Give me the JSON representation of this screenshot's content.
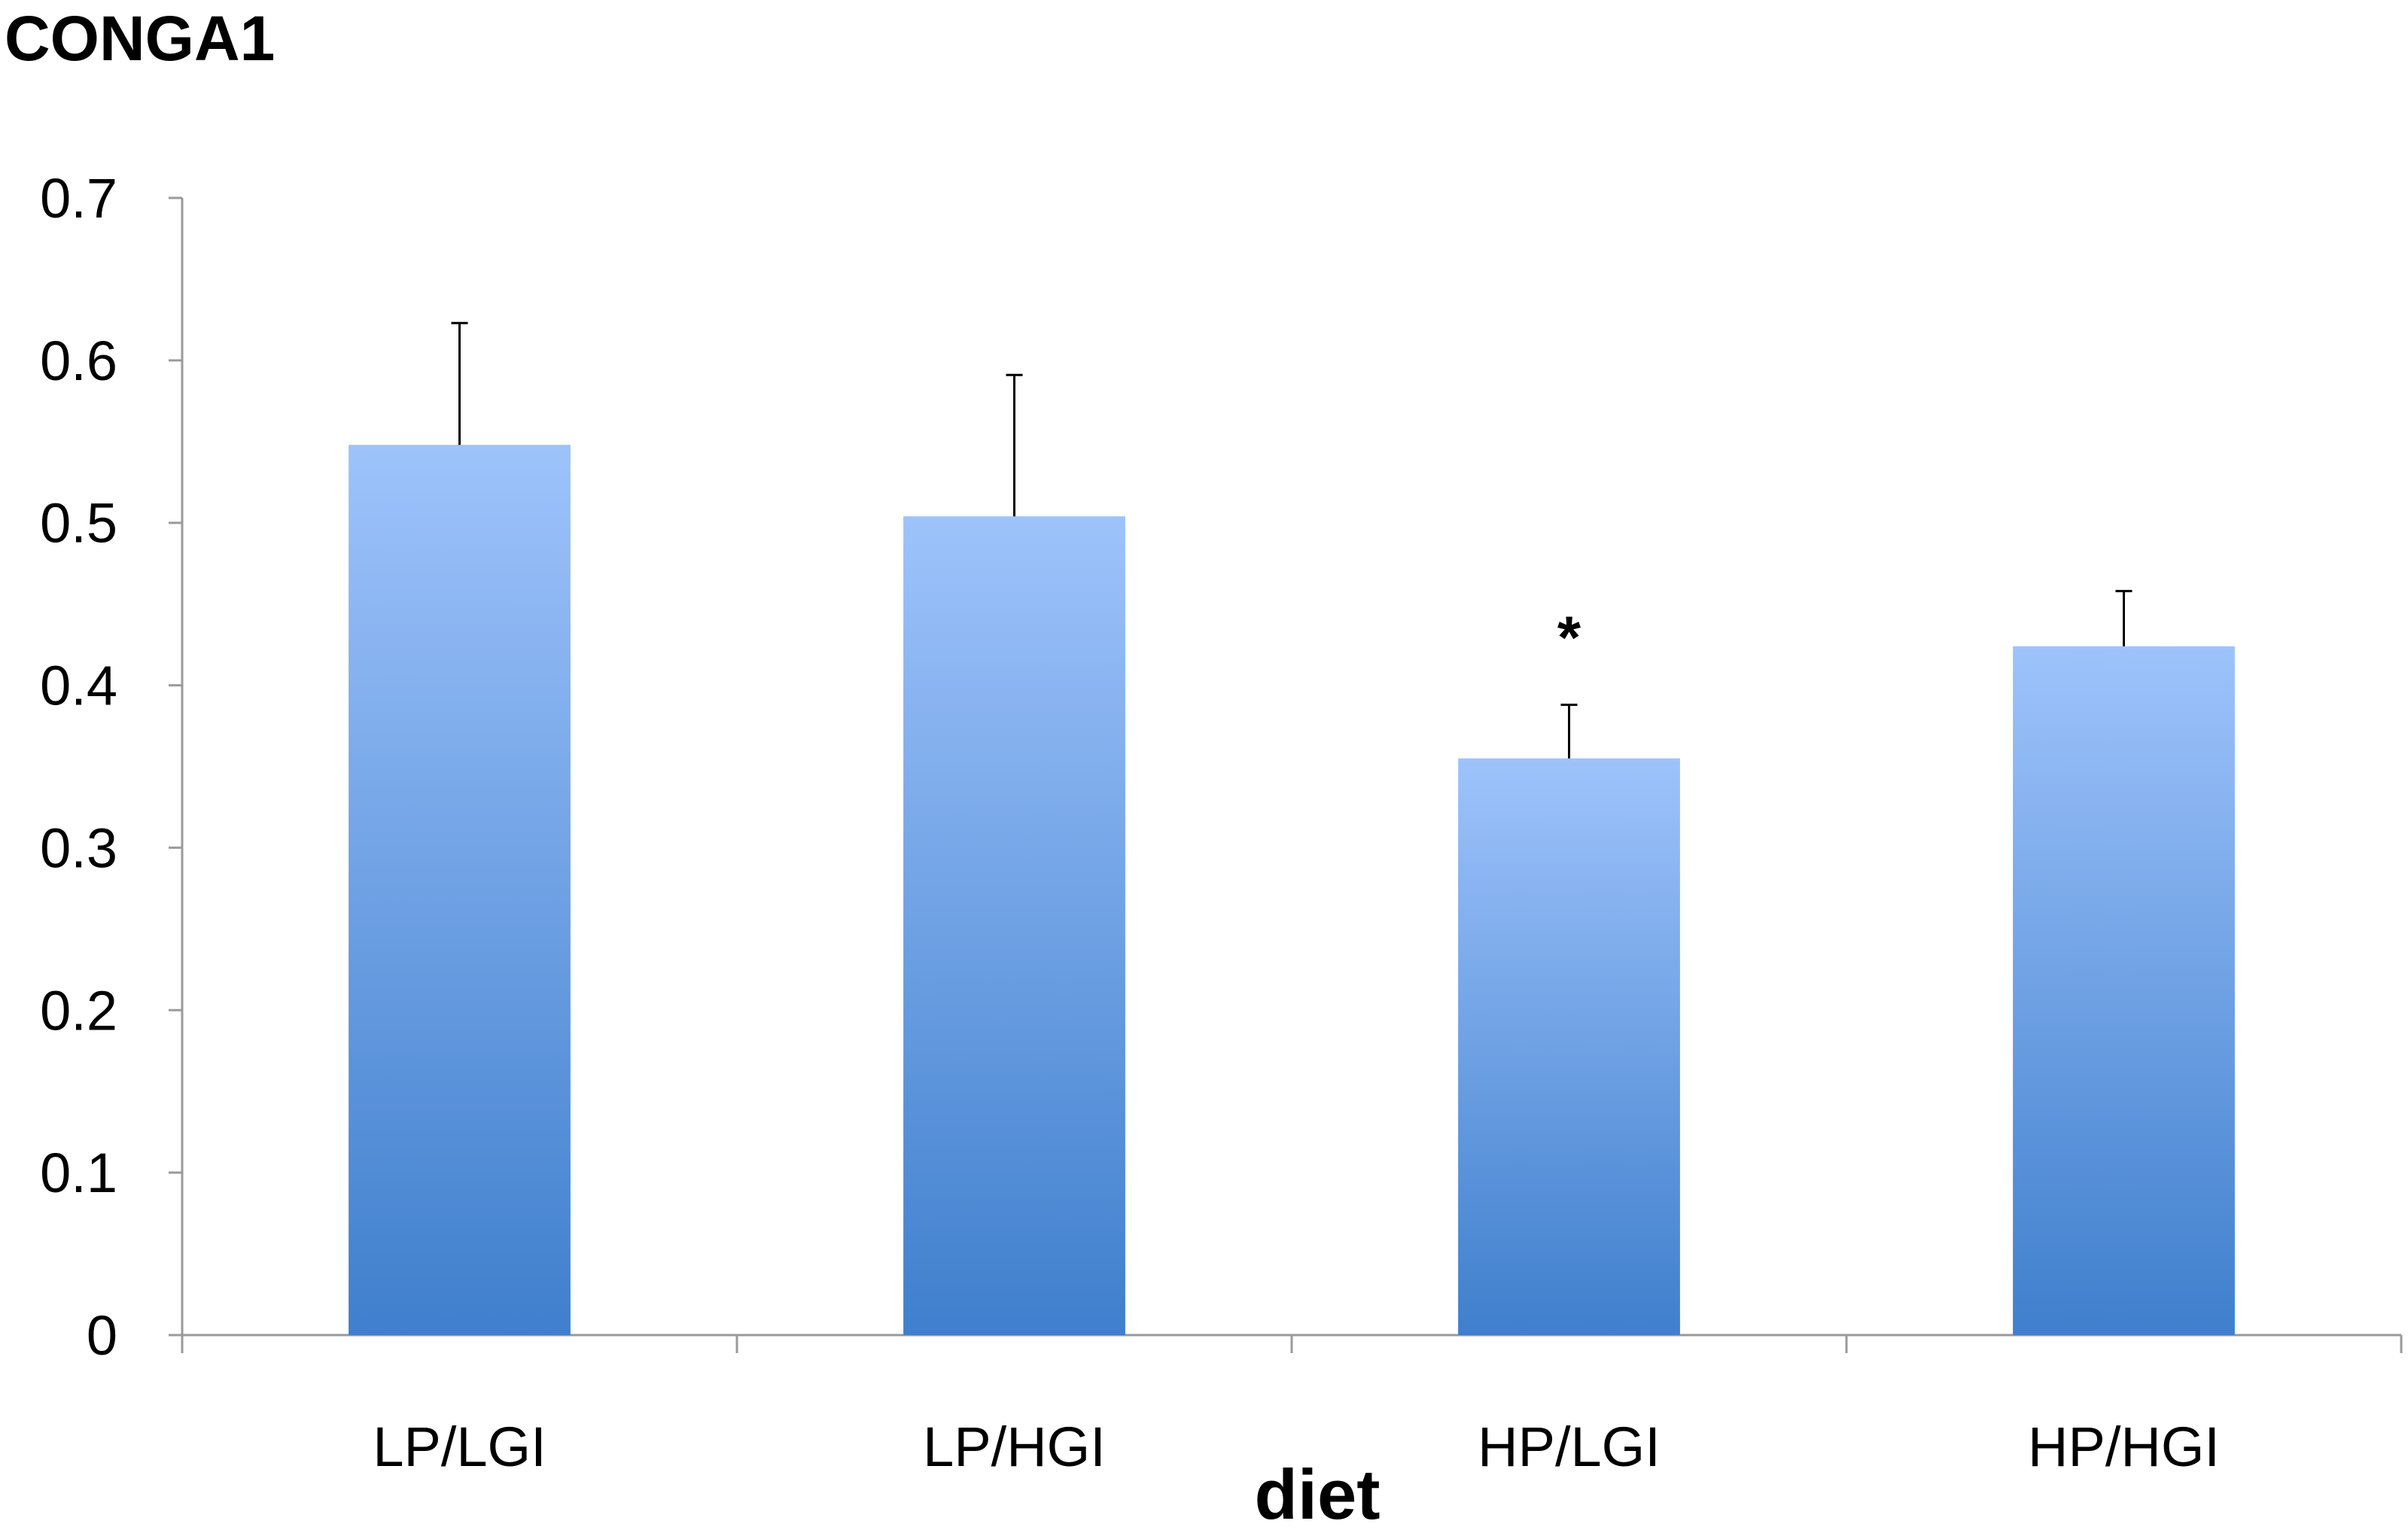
{
  "chart_data": {
    "type": "bar",
    "title": "CONGA1",
    "xlabel": "diet",
    "ylabel": "",
    "categories": [
      "LP/LGI",
      "LP/HGI",
      "HP/LGI",
      "HP/HGI"
    ],
    "values": [
      0.548,
      0.504,
      0.355,
      0.424
    ],
    "error_bars": [
      0.075,
      0.087,
      0.033,
      0.034
    ],
    "ylim": [
      0,
      0.7
    ],
    "yticks": [
      "0",
      "0.1",
      "0.2",
      "0.3",
      "0.4",
      "0.5",
      "0.6",
      "0.7"
    ],
    "ytick_values": [
      0,
      0.1,
      0.2,
      0.3,
      0.4,
      0.5,
      0.6,
      0.7
    ],
    "annotations": [
      {
        "category": "HP/LGI",
        "text": "*"
      }
    ],
    "grid": false,
    "legend": "none",
    "colors": {
      "bar_top": "#9ec3fb",
      "bar_bottom": "#3f7fcd",
      "axis": "#9a9a9a",
      "error": "#000000"
    }
  }
}
